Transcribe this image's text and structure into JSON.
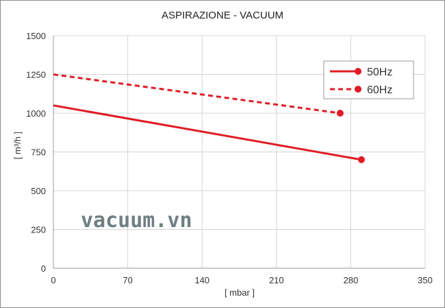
{
  "chart_data": {
    "type": "line",
    "title": "ASPIRAZIONE - VACUUM",
    "xlabel": "[ mbar ]",
    "ylabel": "[ m³/h ]",
    "xlim": [
      0,
      350
    ],
    "ylim": [
      0,
      1500
    ],
    "xticks": [
      0,
      70,
      140,
      210,
      280,
      350
    ],
    "yticks": [
      0,
      250,
      500,
      750,
      1000,
      1250,
      1500
    ],
    "grid": true,
    "legend_position": "top-right",
    "series": [
      {
        "name": "50Hz",
        "style": "solid",
        "color": "#e01b24",
        "x": [
          0,
          290
        ],
        "y": [
          1050,
          700
        ]
      },
      {
        "name": "60Hz",
        "style": "dashed",
        "color": "#e01b24",
        "x": [
          0,
          270
        ],
        "y": [
          1250,
          1000
        ]
      }
    ]
  },
  "watermark": "vacuum.vn"
}
